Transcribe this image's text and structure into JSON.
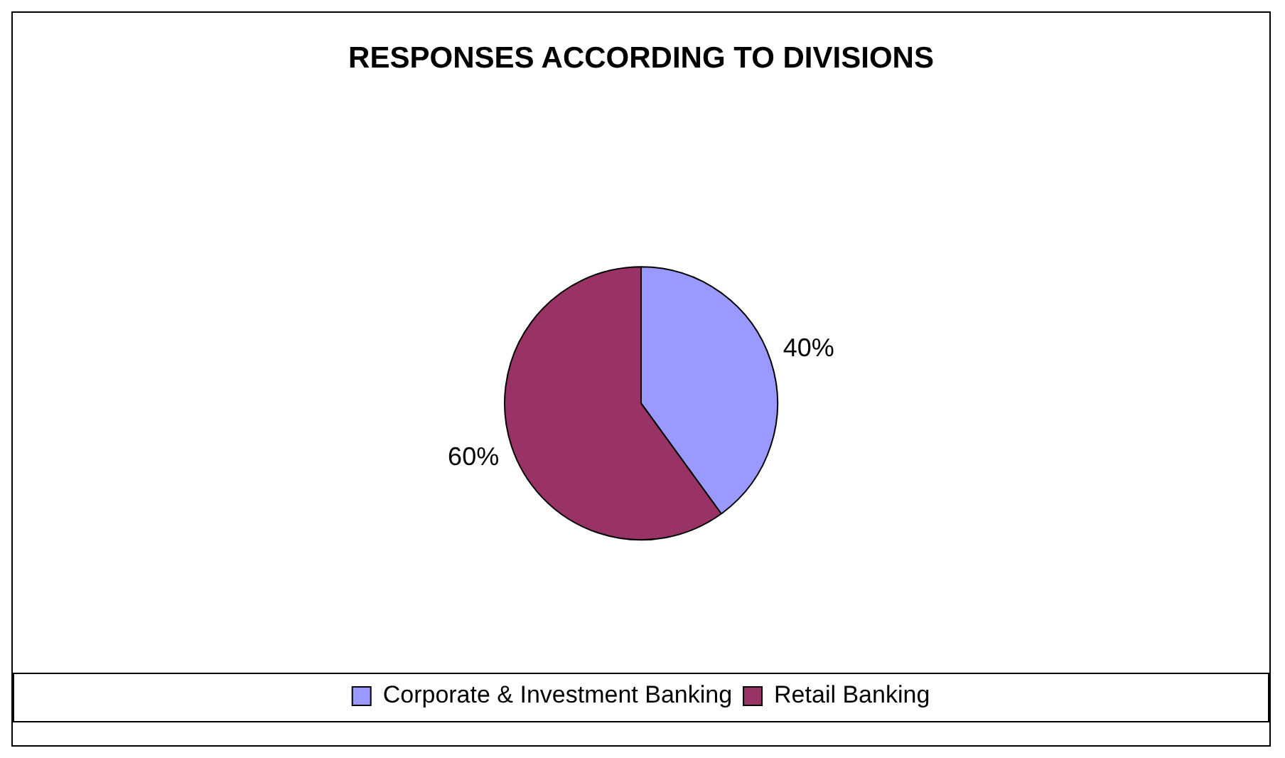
{
  "chart_data": {
    "type": "pie",
    "title": "RESPONSES ACCORDING TO DIVISIONS",
    "categories": [
      "Corporate & Investment Banking",
      "Retail Banking"
    ],
    "values": [
      40,
      60
    ],
    "colors": [
      "#9999ff",
      "#993366"
    ],
    "value_labels": [
      "40%",
      "60%"
    ],
    "legend": "bottom"
  }
}
